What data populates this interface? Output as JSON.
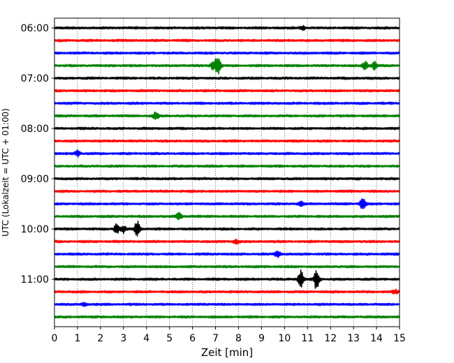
{
  "chart_data": {
    "type": "line",
    "title": "",
    "xlabel": "Zeit  [min]",
    "ylabel": "UTC (Lokalzeit = UTC + 01:00)",
    "xlim": [
      0,
      15
    ],
    "xticks": [
      "0",
      "1",
      "2",
      "3",
      "4",
      "5",
      "6",
      "7",
      "8",
      "9",
      "10",
      "11",
      "12",
      "13",
      "14",
      "15"
    ],
    "yticks": [
      "06:00",
      "07:00",
      "08:00",
      "09:00",
      "10:00",
      "11:00"
    ],
    "grid": "vertical dotted at each minute",
    "trace_colors": [
      "#000000",
      "#ff0000",
      "#0000ff",
      "#008000"
    ],
    "traces_per_hour": 4,
    "traces": [
      {
        "start": "06:00",
        "color": "#000000",
        "events": [
          {
            "minute": 10.8,
            "amplitude": 0.2
          }
        ]
      },
      {
        "start": "06:15",
        "color": "#ff0000",
        "events": []
      },
      {
        "start": "06:30",
        "color": "#0000ff",
        "events": []
      },
      {
        "start": "06:45",
        "color": "#008000",
        "events": [
          {
            "minute": 6.9,
            "amplitude": 0.35
          },
          {
            "minute": 7.1,
            "amplitude": 0.9
          },
          {
            "minute": 13.5,
            "amplitude": 0.4
          },
          {
            "minute": 13.9,
            "amplitude": 0.35
          }
        ]
      },
      {
        "start": "07:00",
        "color": "#000000",
        "events": []
      },
      {
        "start": "07:15",
        "color": "#ff0000",
        "events": []
      },
      {
        "start": "07:30",
        "color": "#0000ff",
        "events": []
      },
      {
        "start": "07:45",
        "color": "#008000",
        "events": [
          {
            "minute": 4.4,
            "amplitude": 0.3
          }
        ]
      },
      {
        "start": "08:00",
        "color": "#000000",
        "events": []
      },
      {
        "start": "08:15",
        "color": "#ff0000",
        "events": []
      },
      {
        "start": "08:30",
        "color": "#0000ff",
        "events": [
          {
            "minute": 1.0,
            "amplitude": 0.25
          }
        ]
      },
      {
        "start": "08:45",
        "color": "#008000",
        "events": []
      },
      {
        "start": "09:00",
        "color": "#000000",
        "events": []
      },
      {
        "start": "09:15",
        "color": "#ff0000",
        "events": []
      },
      {
        "start": "09:30",
        "color": "#0000ff",
        "events": [
          {
            "minute": 10.7,
            "amplitude": 0.2
          },
          {
            "minute": 13.4,
            "amplitude": 0.5
          }
        ]
      },
      {
        "start": "09:45",
        "color": "#008000",
        "events": [
          {
            "minute": 5.4,
            "amplitude": 0.35
          }
        ]
      },
      {
        "start": "10:00",
        "color": "#000000",
        "events": [
          {
            "minute": 2.7,
            "amplitude": 0.4
          },
          {
            "minute": 3.0,
            "amplitude": 0.3
          },
          {
            "minute": 3.6,
            "amplitude": 0.7
          }
        ]
      },
      {
        "start": "10:15",
        "color": "#ff0000",
        "events": [
          {
            "minute": 7.9,
            "amplitude": 0.2
          }
        ]
      },
      {
        "start": "10:30",
        "color": "#0000ff",
        "events": [
          {
            "minute": 9.7,
            "amplitude": 0.25
          }
        ]
      },
      {
        "start": "10:45",
        "color": "#008000",
        "events": []
      },
      {
        "start": "11:00",
        "color": "#000000",
        "events": [
          {
            "minute": 10.7,
            "amplitude": 0.75
          },
          {
            "minute": 11.4,
            "amplitude": 0.95
          }
        ]
      },
      {
        "start": "11:15",
        "color": "#ff0000",
        "events": [
          {
            "minute": 14.8,
            "amplitude": 0.15
          }
        ]
      },
      {
        "start": "11:30",
        "color": "#0000ff",
        "events": [
          {
            "minute": 1.3,
            "amplitude": 0.15
          }
        ]
      },
      {
        "start": "11:45",
        "color": "#008000",
        "events": []
      }
    ]
  }
}
